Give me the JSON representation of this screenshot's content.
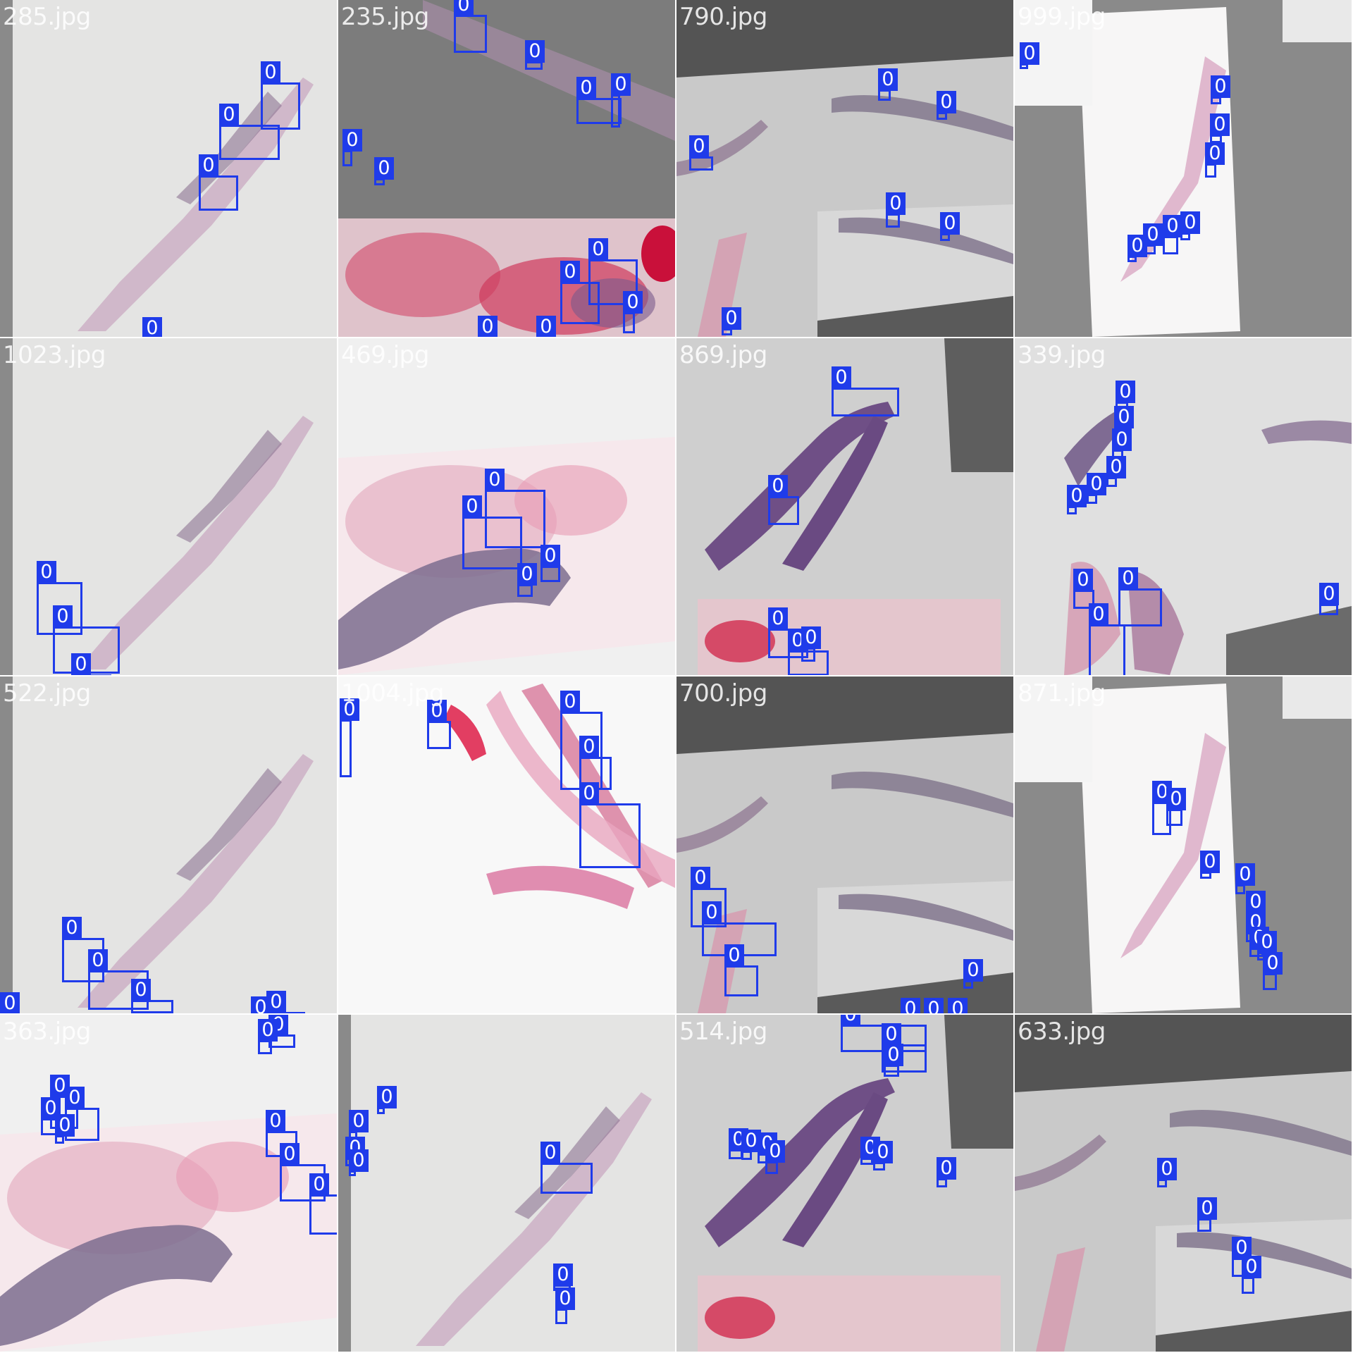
{
  "tiles": [
    {
      "file": "285.jpg",
      "theme": "light",
      "class_label": "0"
    },
    {
      "file": "235.jpg",
      "theme": "dark-red",
      "class_label": "0"
    },
    {
      "file": "790.jpg",
      "theme": "dark",
      "class_label": "0"
    },
    {
      "file": "999.jpg",
      "theme": "strip",
      "class_label": "0"
    },
    {
      "file": "1023.jpg",
      "theme": "light",
      "class_label": "0"
    },
    {
      "file": "469.jpg",
      "theme": "pink-purple",
      "class_label": "0"
    },
    {
      "file": "869.jpg",
      "theme": "purple",
      "class_label": "0"
    },
    {
      "file": "339.jpg",
      "theme": "purple-light",
      "class_label": "0"
    },
    {
      "file": "522.jpg",
      "theme": "light",
      "class_label": "0"
    },
    {
      "file": "1004.jpg",
      "theme": "pink",
      "class_label": "0"
    },
    {
      "file": "700.jpg",
      "theme": "dark",
      "class_label": "0"
    },
    {
      "file": "871.jpg",
      "theme": "strip",
      "class_label": "0"
    },
    {
      "file": "363.jpg",
      "theme": "pink-purple",
      "class_label": "0"
    },
    {
      "file": "",
      "theme": "light",
      "class_label": "0"
    },
    {
      "file": "514.jpg",
      "theme": "purple",
      "class_label": "0"
    },
    {
      "file": "633.jpg",
      "theme": "dark",
      "class_label": "0"
    }
  ],
  "colors": {
    "box": "#1f3bea",
    "label_text": "#ffffff"
  }
}
